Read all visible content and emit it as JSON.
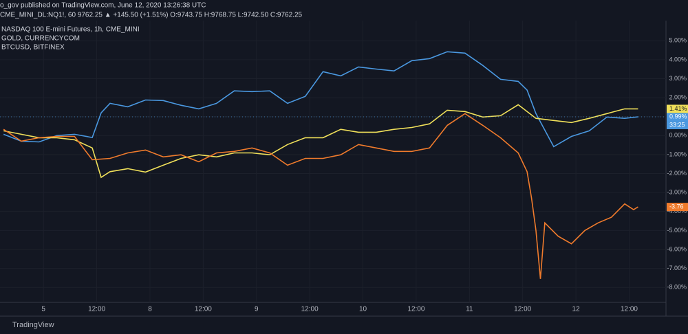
{
  "chart_data": {
    "type": "line",
    "title": "o_gov published on TradingView.com, June 12, 2020 13:26:38 UTC",
    "subtitle": "CME_MINI_DL:NQ1!, 60  9762.25 ▲ +145.50 (+1.51%) O:9743.75 H:9768.75 L:9742.50 C:9762.25",
    "watermark": "TradingView",
    "countdown": "33:25",
    "xlim": [
      -9.8,
      140.3
    ],
    "ylim": [
      -8.79,
      5.7
    ],
    "grid": true,
    "xticks": [
      {
        "value": 0,
        "label": "5"
      },
      {
        "value": 12,
        "label": "12:00"
      },
      {
        "value": 24,
        "label": "8"
      },
      {
        "value": 36,
        "label": "12:00"
      },
      {
        "value": 48,
        "label": "9"
      },
      {
        "value": 60,
        "label": "12:00"
      },
      {
        "value": 72,
        "label": "10"
      },
      {
        "value": 84,
        "label": "12:00"
      },
      {
        "value": 96,
        "label": "11"
      },
      {
        "value": 108,
        "label": "12:00"
      },
      {
        "value": 120,
        "label": "12"
      },
      {
        "value": 132,
        "label": "12:00"
      }
    ],
    "yticks": [
      {
        "value": 5,
        "label": "5.00%"
      },
      {
        "value": 4,
        "label": "4.00%"
      },
      {
        "value": 3,
        "label": "3.00%"
      },
      {
        "value": 2,
        "label": "2.00%"
      },
      {
        "value": 1,
        "label": "1.00%"
      },
      {
        "value": 0,
        "label": "0.00%"
      },
      {
        "value": -1,
        "label": "-1.00%"
      },
      {
        "value": -2,
        "label": "-2.00%"
      },
      {
        "value": -3,
        "label": "-3.00%"
      },
      {
        "value": -4,
        "label": "-4.00%"
      },
      {
        "value": -5,
        "label": "-5.00%"
      },
      {
        "value": -6,
        "label": "-6.00%"
      },
      {
        "value": -7,
        "label": "-7.00%"
      },
      {
        "value": -8,
        "label": "-8.00%"
      }
    ],
    "series": [
      {
        "name": "NASDAQ 100 E-mini Futures, 1h, CME_MINI",
        "color": "#4a98e0",
        "end_label": "0.99%",
        "x": [
          -9,
          -5,
          -1,
          3,
          7,
          11,
          13,
          15,
          19,
          23,
          27,
          31,
          35,
          39,
          43,
          47,
          51,
          55,
          59,
          63,
          67,
          71,
          75,
          79,
          83,
          87,
          91,
          95,
          99,
          103,
          107,
          109,
          111,
          115,
          119,
          123,
          127,
          131,
          134
        ],
        "values": [
          0.07,
          -0.29,
          -0.33,
          0,
          0.07,
          -0.1,
          1.2,
          1.7,
          1.52,
          1.88,
          1.85,
          1.6,
          1.41,
          1.7,
          2.36,
          2.32,
          2.36,
          1.7,
          2.07,
          3.37,
          3.15,
          3.62,
          3.51,
          3.41,
          3.95,
          4.06,
          4.42,
          4.35,
          3.7,
          2.97,
          2.86,
          2.4,
          1.16,
          -0.58,
          -0.04,
          0.25,
          0.98,
          0.91,
          0.99
        ]
      },
      {
        "name": "GOLD, CURRENCYCOM",
        "color": "#f0e05a",
        "end_label": "1.41%",
        "x": [
          -9,
          -5,
          -1,
          3,
          7,
          11,
          13,
          15,
          19,
          23,
          27,
          31,
          35,
          39,
          43,
          47,
          51,
          55,
          59,
          63,
          67,
          71,
          75,
          79,
          83,
          87,
          91,
          95,
          99,
          103,
          107,
          111,
          115,
          119,
          123,
          127,
          131,
          134
        ],
        "values": [
          0.25,
          0.07,
          -0.11,
          -0.11,
          -0.22,
          -0.65,
          -2.2,
          -1.9,
          -1.74,
          -1.92,
          -1.56,
          -1.2,
          -1.01,
          -1.12,
          -0.91,
          -0.91,
          -1.01,
          -0.47,
          -0.11,
          -0.11,
          0.33,
          0.18,
          0.18,
          0.33,
          0.43,
          0.62,
          1.34,
          1.27,
          0.98,
          1.05,
          1.63,
          0.91,
          0.8,
          0.69,
          0.91,
          1.16,
          1.41,
          1.41
        ]
      },
      {
        "name": "BTCUSD, BITFINEX",
        "color": "#f07b2c",
        "end_label": "-3.76",
        "x": [
          -9,
          -5,
          -1,
          3,
          7,
          11,
          15,
          19,
          23,
          27,
          31,
          35,
          39,
          43,
          47,
          51,
          55,
          59,
          63,
          67,
          71,
          75,
          79,
          83,
          87,
          91,
          95,
          99,
          103,
          107,
          109,
          110,
          111,
          112,
          113,
          116,
          119,
          122,
          125,
          128,
          131,
          133,
          134
        ],
        "values": [
          0.33,
          -0.29,
          -0.11,
          -0.04,
          -0.04,
          -1.27,
          -1.2,
          -0.91,
          -0.76,
          -1.12,
          -1.01,
          -1.38,
          -0.91,
          -0.83,
          -0.65,
          -0.91,
          -1.56,
          -1.2,
          -1.2,
          -1.01,
          -0.47,
          -0.65,
          -0.83,
          -0.83,
          -0.65,
          0.54,
          1.16,
          0.54,
          -0.11,
          -0.91,
          -1.9,
          -3.3,
          -5.0,
          -7.55,
          -4.6,
          -5.3,
          -5.7,
          -5.0,
          -4.6,
          -4.3,
          -3.6,
          -3.9,
          -3.76
        ]
      }
    ]
  }
}
